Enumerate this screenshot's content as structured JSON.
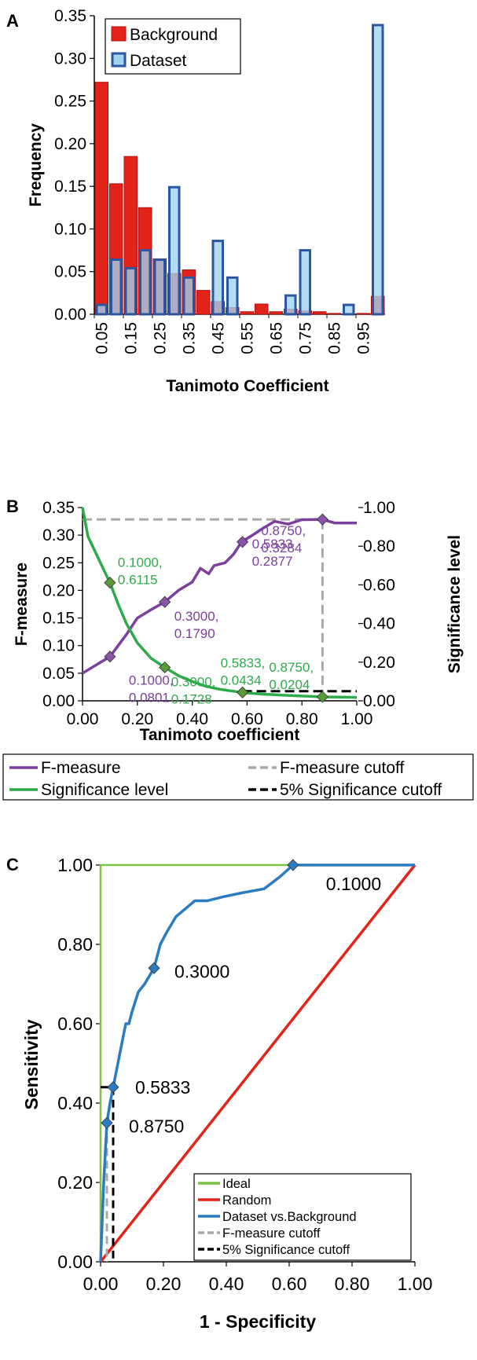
{
  "chart_data": [
    {
      "panel": "A",
      "type": "bar",
      "xlabel": "Tanimoto Coefficient",
      "ylabel": "Frequency",
      "ylim": [
        0,
        0.35
      ],
      "yticks": [
        "0.00",
        "0.05",
        "0.10",
        "0.15",
        "0.20",
        "0.25",
        "0.30",
        "0.35"
      ],
      "categories": [
        "0.05",
        "0.10",
        "0.15",
        "0.20",
        "0.25",
        "0.30",
        "0.35",
        "0.40",
        "0.45",
        "0.50",
        "0.55",
        "0.60",
        "0.65",
        "0.70",
        "0.75",
        "0.80",
        "0.85",
        "0.90",
        "0.95",
        "1.00"
      ],
      "xtick_labels": [
        "0.05",
        "0.15",
        "0.25",
        "0.35",
        "0.45",
        "0.55",
        "0.65",
        "0.75",
        "0.85",
        "0.95"
      ],
      "legend_placement": "top-left",
      "series": [
        {
          "name": "Background",
          "color": "#e2231a",
          "values": [
            0.272,
            0.153,
            0.185,
            0.125,
            0.065,
            0.048,
            0.052,
            0.028,
            0.015,
            0.008,
            0.003,
            0.012,
            0.003,
            0.006,
            0.004,
            0.003,
            0.001,
            0.0,
            0.001,
            0.021
          ]
        },
        {
          "name": "Dataset",
          "color": "#9fd3f2",
          "edge": "#2c56a0",
          "values": [
            0.011,
            0.064,
            0.054,
            0.075,
            0.064,
            0.149,
            0.043,
            0.0,
            0.086,
            0.043,
            0.0,
            0.0,
            0.0,
            0.022,
            0.075,
            0.0,
            0.0,
            0.011,
            0.0,
            0.339
          ]
        }
      ]
    },
    {
      "panel": "B",
      "type": "line",
      "xlabel": "Tanimoto coefficient",
      "ylabel": "F-measure",
      "y2label": "Significance level",
      "xlim": [
        0,
        1
      ],
      "ylim": [
        0,
        0.35
      ],
      "y2lim": [
        0,
        1
      ],
      "xticks": [
        "0.00",
        "0.20",
        "0.40",
        "0.60",
        "0.80",
        "1.00"
      ],
      "yticks": [
        "0.00",
        "0.05",
        "0.10",
        "0.15",
        "0.20",
        "0.25",
        "0.30",
        "0.35"
      ],
      "y2ticks": [
        "0.00",
        "0.20",
        "0.40",
        "0.60",
        "0.80",
        "1.00"
      ],
      "legend_placement": "bottom",
      "series": [
        {
          "name": "F-measure",
          "color": "#7b3f9e",
          "axis": "left",
          "x": [
            0.0,
            0.05,
            0.1,
            0.13,
            0.16,
            0.2,
            0.25,
            0.3,
            0.35,
            0.4,
            0.43,
            0.46,
            0.48,
            0.52,
            0.55,
            0.58,
            0.62,
            0.65,
            0.7,
            0.75,
            0.8,
            0.875,
            0.92,
            1.0
          ],
          "y": [
            0.05,
            0.065,
            0.08,
            0.1,
            0.12,
            0.15,
            0.165,
            0.179,
            0.2,
            0.215,
            0.24,
            0.23,
            0.245,
            0.25,
            0.265,
            0.2877,
            0.3,
            0.31,
            0.325,
            0.32,
            0.328,
            0.3284,
            0.322,
            0.322
          ]
        },
        {
          "name": "Significance level",
          "color": "#2eaa4a",
          "axis": "right",
          "x": [
            0.0,
            0.02,
            0.05,
            0.08,
            0.1,
            0.13,
            0.16,
            0.2,
            0.25,
            0.3,
            0.35,
            0.4,
            0.45,
            0.5,
            0.58,
            0.65,
            0.75,
            0.875,
            1.0
          ],
          "y": [
            1.0,
            0.85,
            0.76,
            0.67,
            0.6115,
            0.5,
            0.4,
            0.3,
            0.22,
            0.1728,
            0.13,
            0.1,
            0.075,
            0.06,
            0.0434,
            0.035,
            0.028,
            0.0204,
            0.018
          ]
        },
        {
          "name": "F-measure cutoff",
          "color": "#a8a8a8",
          "dash": true
        },
        {
          "name": "5% Significance cutoff",
          "color": "#000000",
          "dash": true
        }
      ],
      "f_cutoff": {
        "x": 0.875,
        "y": 0.3284
      },
      "sig_cutoff": {
        "x_start": 0.5833,
        "x_end": 1.0,
        "y2": 0.05
      },
      "markers": [
        {
          "series": "F-measure",
          "x": 0.1,
          "y": 0.0801,
          "label1": "0.1000,",
          "label2": "0.0801"
        },
        {
          "series": "F-measure",
          "x": 0.3,
          "y": 0.179,
          "label1": "0.3000,",
          "label2": "0.1790"
        },
        {
          "series": "F-measure",
          "x": 0.5833,
          "y": 0.2877,
          "label1": "0.5833",
          "label2": "0.2877"
        },
        {
          "series": "F-measure",
          "x": 0.875,
          "y": 0.3284,
          "label1": "0.8750,",
          "label2": "0.3284"
        },
        {
          "series": "Significance level",
          "x": 0.1,
          "y2": 0.6115,
          "label1": "0.1000,",
          "label2": "0.6115"
        },
        {
          "series": "Significance level",
          "x": 0.3,
          "y2": 0.1728,
          "label1": "0.3000,",
          "label2": "0.1728"
        },
        {
          "series": "Significance level",
          "x": 0.5833,
          "y2": 0.0434,
          "label1": "0.5833,",
          "label2": "0.0434"
        },
        {
          "series": "Significance level",
          "x": 0.875,
          "y2": 0.0204,
          "label1": "0.8750,",
          "label2": "0.0204"
        }
      ]
    },
    {
      "panel": "C",
      "type": "line",
      "xlabel": "1 - Specificity",
      "ylabel": "Sensitivity",
      "xlim": [
        0,
        1
      ],
      "ylim": [
        0,
        1
      ],
      "xticks": [
        "0.00",
        "0.20",
        "0.40",
        "0.60",
        "0.80",
        "1.00"
      ],
      "yticks": [
        "0.00",
        "0.20",
        "0.40",
        "0.60",
        "0.80",
        "1.00"
      ],
      "legend_placement": "bottom-right",
      "series": [
        {
          "name": "Ideal",
          "color": "#7dc242",
          "x": [
            0,
            0,
            1
          ],
          "y": [
            0,
            1,
            1
          ]
        },
        {
          "name": "Random",
          "color": "#e2231a",
          "x": [
            0,
            1
          ],
          "y": [
            0,
            1
          ]
        },
        {
          "name": "Dataset vs.Background",
          "color": "#2b7bc0",
          "x": [
            0.0,
            0.01,
            0.02,
            0.03,
            0.04,
            0.05,
            0.06,
            0.07,
            0.08,
            0.09,
            0.1,
            0.12,
            0.14,
            0.17,
            0.19,
            0.21,
            0.24,
            0.27,
            0.3,
            0.34,
            0.39,
            0.45,
            0.52,
            0.57,
            0.612,
            0.7,
            1.0
          ],
          "y": [
            0.0,
            0.2,
            0.35,
            0.4,
            0.44,
            0.48,
            0.52,
            0.56,
            0.6,
            0.6,
            0.63,
            0.68,
            0.7,
            0.74,
            0.8,
            0.83,
            0.87,
            0.89,
            0.91,
            0.91,
            0.92,
            0.93,
            0.94,
            0.97,
            1.0,
            1.0,
            1.0
          ]
        },
        {
          "name": "F-measure cutoff",
          "color": "#a8a8a8",
          "dash": true
        },
        {
          "name": "5% Significance cutoff",
          "color": "#000000",
          "dash": true
        }
      ],
      "markers": [
        {
          "x": 0.612,
          "y": 1.0,
          "label": "0.1000"
        },
        {
          "x": 0.17,
          "y": 0.74,
          "label": "0.3000"
        },
        {
          "x": 0.04,
          "y": 0.44,
          "label": "0.5833"
        },
        {
          "x": 0.02,
          "y": 0.35,
          "label": "0.8750"
        }
      ],
      "f_cutoff": {
        "x": 0.02,
        "y": 0.35
      },
      "sig_cutoff": {
        "x": 0.04,
        "y": 0.44
      }
    }
  ]
}
